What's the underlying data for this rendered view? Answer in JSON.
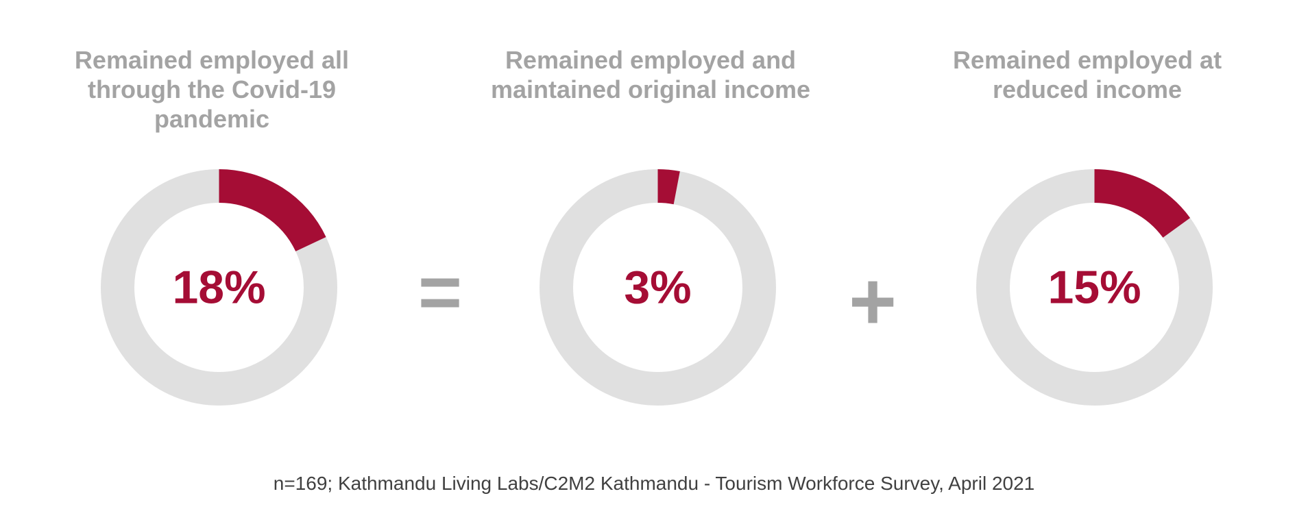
{
  "colors": {
    "accent": "#a50d35",
    "ring_background": "#e0e0e0",
    "title_gray": "#a3a3a3",
    "source_text": "#404040"
  },
  "chart_data": [
    {
      "type": "pie",
      "title": "Remained employed all through the Covid-19 pandemic",
      "value_label": "18%",
      "values": [
        18,
        82
      ],
      "categories": [
        "Remained employed all through the Covid-19 pandemic",
        "Other"
      ]
    },
    {
      "type": "pie",
      "title": "Remained employed and maintained original income",
      "value_label": "3%",
      "values": [
        3,
        97
      ],
      "categories": [
        "Remained employed and maintained original income",
        "Other"
      ]
    },
    {
      "type": "pie",
      "title": "Remained employed at reduced income",
      "value_label": "15%",
      "values": [
        15,
        85
      ],
      "categories": [
        "Remained employed at reduced income",
        "Other"
      ]
    }
  ],
  "operators": {
    "equals": "=",
    "plus": "+"
  },
  "source_note": "n=169; Kathmandu Living Labs/C2M2 Kathmandu - Tourism Workforce Survey, April 2021"
}
